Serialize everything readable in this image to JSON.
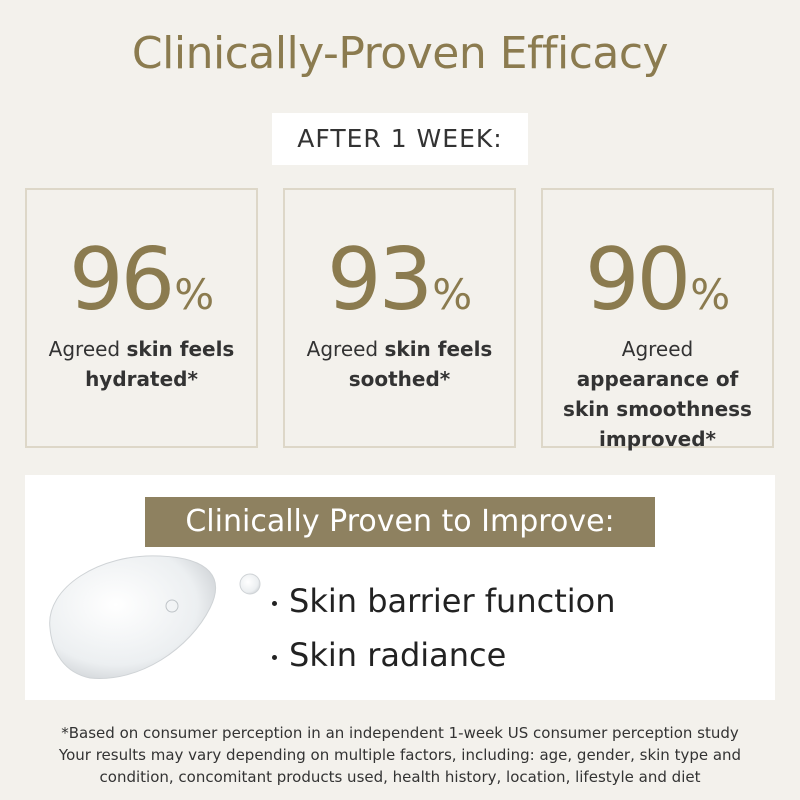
{
  "header": {
    "title": "Clinically-Proven Efficacy",
    "badge": "AFTER 1 WEEK:"
  },
  "stats": [
    {
      "number": 96,
      "unit": "%",
      "lead": "Agreed",
      "emphasis": "skin feels hydrated*"
    },
    {
      "number": 93,
      "unit": "%",
      "lead": "Agreed",
      "emphasis": "skin feels soothed*"
    },
    {
      "number": 90,
      "unit": "%",
      "lead": "Agreed",
      "emphasis": "appearance of skin smoothness improved*"
    }
  ],
  "benefits": {
    "heading": "Clinically Proven to Improve:",
    "items": [
      "Skin barrier function",
      "Skin radiance"
    ]
  },
  "footnote": [
    "*Based on consumer perception in an independent 1-week US consumer perception study",
    "Your results may vary depending on multiple factors, including: age, gender, skin type and",
    "condition, concomitant products used, health history, location, lifestyle and diet"
  ]
}
